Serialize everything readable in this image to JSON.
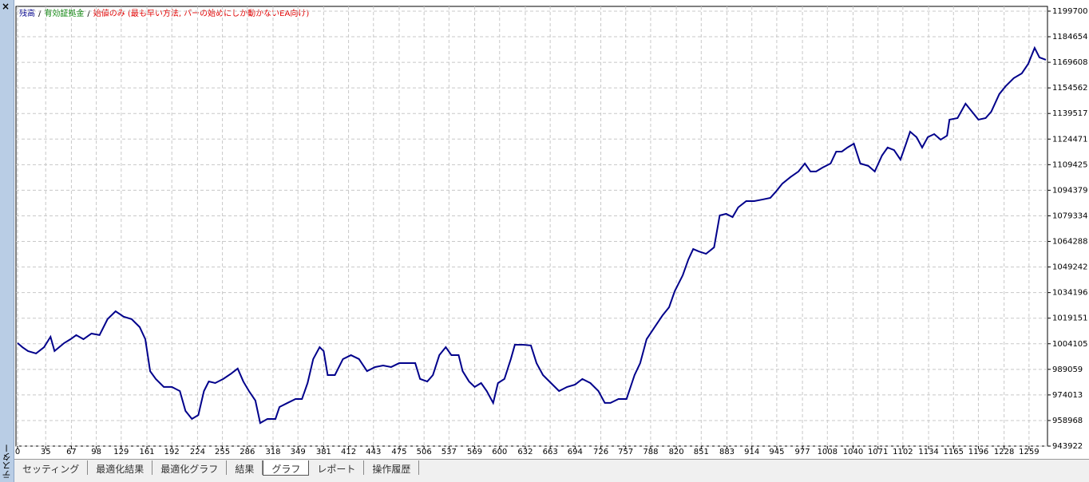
{
  "panel": {
    "close": "×",
    "title": "テスター"
  },
  "tabs": [
    "セッティング",
    "最適化結果",
    "最適化グラフ",
    "結果",
    "グラフ",
    "レポート",
    "操作履歴"
  ],
  "active_tab": 4,
  "chart_data": {
    "type": "line",
    "legend_separator": "/",
    "legend": [
      {
        "text": "残高",
        "color": "#00008b"
      },
      {
        "text": "有効証拠金",
        "color": "#008000"
      },
      {
        "text": "始値のみ (最も早い方法, バーの始めにしか動かないEA向け)",
        "color": "#e00000"
      }
    ],
    "grid": true,
    "xlim": [
      -2,
      1282
    ],
    "ylim": [
      943922,
      1202500
    ],
    "xticks": [
      0,
      35,
      67,
      98,
      129,
      161,
      192,
      224,
      255,
      286,
      318,
      349,
      381,
      412,
      443,
      475,
      506,
      537,
      569,
      600,
      632,
      663,
      694,
      726,
      757,
      788,
      820,
      851,
      883,
      914,
      945,
      977,
      1008,
      1040,
      1071,
      1102,
      1134,
      1165,
      1196,
      1228,
      1259
    ],
    "yticks": [
      1199700,
      1184654,
      1169608,
      1154562,
      1139517,
      1124471,
      1109425,
      1094379,
      1079334,
      1064288,
      1049242,
      1034196,
      1019151,
      1004105,
      989059,
      974013,
      958968,
      943922
    ],
    "x": [
      0,
      6,
      13,
      23,
      33,
      41,
      46,
      58,
      66,
      73,
      82,
      92,
      102,
      112,
      122,
      132,
      142,
      152,
      159,
      165,
      172,
      182,
      192,
      202,
      209,
      217,
      225,
      232,
      238,
      246,
      256,
      266,
      274,
      281,
      288,
      296,
      302,
      311,
      321,
      326,
      336,
      346,
      354,
      361,
      368,
      376,
      381,
      386,
      395,
      405,
      415,
      425,
      435,
      445,
      455,
      465,
      475,
      485,
      495,
      501,
      510,
      517,
      525,
      533,
      540,
      549,
      554,
      562,
      569,
      577,
      584,
      592,
      598,
      606,
      614,
      619,
      629,
      639,
      646,
      654,
      664,
      674,
      684,
      694,
      703,
      713,
      723,
      731,
      738,
      748,
      758,
      768,
      775,
      783,
      793,
      803,
      811,
      818,
      828,
      835,
      841,
      848,
      857,
      867,
      874,
      882,
      890,
      897,
      907,
      917,
      927,
      937,
      944,
      952,
      962,
      972,
      980,
      987,
      994,
      1002,
      1012,
      1019,
      1026,
      1033,
      1041,
      1049,
      1059,
      1067,
      1076,
      1083,
      1091,
      1099,
      1106,
      1111,
      1119,
      1126,
      1133,
      1141,
      1149,
      1157,
      1160,
      1170,
      1180,
      1188,
      1196,
      1205,
      1212,
      1222,
      1230,
      1240,
      1250,
      1258,
      1266,
      1272,
      1280
    ],
    "series": [
      {
        "name": "残高",
        "color": "#00008b",
        "values": [
          1004500,
          1002100,
          999800,
          998400,
          1002100,
          1008200,
          999800,
          1004500,
          1006800,
          1009200,
          1006800,
          1010100,
          1009200,
          1018600,
          1023200,
          1020000,
          1018600,
          1013900,
          1006800,
          988000,
          983400,
          978700,
          978700,
          976300,
          964600,
          959900,
          962200,
          976300,
          981900,
          981000,
          983400,
          986600,
          989500,
          981900,
          976300,
          970700,
          957500,
          959900,
          959900,
          966900,
          969300,
          971600,
          971600,
          981000,
          995100,
          1002100,
          999800,
          985700,
          985700,
          995100,
          997400,
          995100,
          988000,
          990400,
          991300,
          990400,
          992700,
          992700,
          992700,
          983400,
          981900,
          985700,
          997400,
          1002100,
          997400,
          997400,
          988000,
          981900,
          978700,
          981000,
          976300,
          969300,
          981000,
          983400,
          995100,
          1003500,
          1003500,
          1003100,
          992700,
          985700,
          981000,
          976300,
          978700,
          980100,
          983400,
          981000,
          976300,
          969300,
          969300,
          971600,
          971600,
          985700,
          992700,
          1006800,
          1013900,
          1020900,
          1025600,
          1035000,
          1044400,
          1053700,
          1059800,
          1058400,
          1057000,
          1060800,
          1079600,
          1080500,
          1078600,
          1084300,
          1088000,
          1088000,
          1088900,
          1089900,
          1093600,
          1098300,
          1102100,
          1105400,
          1110100,
          1105400,
          1105400,
          1107700,
          1110100,
          1117100,
          1117100,
          1119500,
          1121800,
          1110100,
          1108700,
          1105400,
          1114800,
          1119500,
          1118000,
          1112400,
          1121800,
          1128800,
          1125600,
          1119500,
          1125600,
          1127400,
          1124100,
          1126500,
          1135900,
          1136800,
          1145300,
          1140600,
          1135900,
          1136800,
          1140600,
          1150900,
          1155600,
          1160300,
          1163100,
          1168700,
          1178100,
          1172500,
          1171100
        ]
      }
    ]
  }
}
